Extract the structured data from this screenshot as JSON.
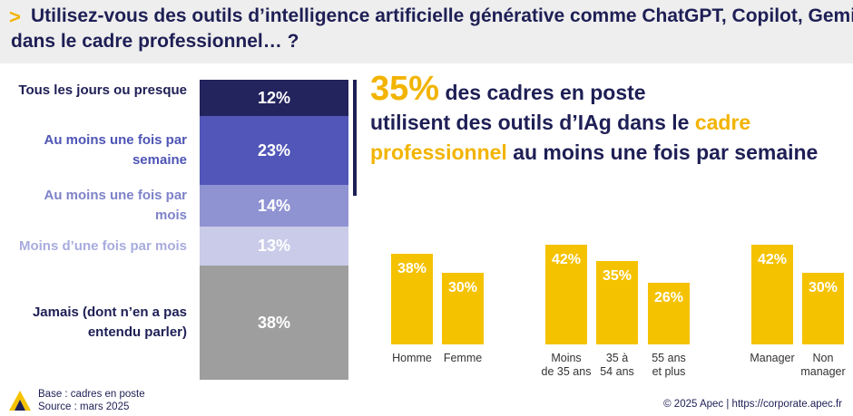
{
  "question": {
    "arrow": ">",
    "line1": "Utilisez-vous des outils d’intelligence artificielle générative comme ChatGPT, Copilot, Gemini",
    "line2": "dans le cadre professionnel… ?"
  },
  "headline": {
    "big_value": "35%",
    "part1": " des cadres en poste",
    "part2": "utilisent des outils d’IAg dans le ",
    "part3_highlight": "cadre",
    "part4_highlight": "professionnel",
    "part5": " au moins une fois par semaine"
  },
  "chart_data": [
    {
      "type": "bar",
      "orientation": "stacked-vertical",
      "categories": [
        "Tous les jours ou presque",
        "Au moins une fois par semaine",
        "Au moins une fois par mois",
        "Moins d’une fois par mois",
        "Jamais (dont n’en a pas entendu parler)"
      ],
      "values": [
        12,
        23,
        14,
        13,
        38
      ],
      "value_labels": [
        "12%",
        "23%",
        "14%",
        "13%",
        "38%"
      ],
      "colors": [
        "#23235e",
        "#5156b8",
        "#8f93d2",
        "#c9cbe8",
        "#9e9e9e"
      ],
      "label_colors": [
        "#1e1f55",
        "#4e55b5",
        "#7e83c9",
        "#a8acde",
        "#1e1f55"
      ],
      "category_lines": [
        [
          "Tous les jours ou presque"
        ],
        [
          "Au moins une fois par",
          "semaine"
        ],
        [
          "Au moins une fois par",
          "mois"
        ],
        [
          "Moins d’une fois par mois"
        ],
        [
          "Jamais (dont n’en a pas",
          "entendu parler)"
        ]
      ]
    },
    {
      "type": "bar",
      "categories": [
        "Homme",
        "Femme",
        "Moins de 35 ans",
        "35 à 54 ans",
        "55 ans et plus",
        "Manager",
        "Non manager"
      ],
      "values": [
        38,
        30,
        42,
        35,
        26,
        42,
        30
      ],
      "value_labels": [
        "38%",
        "30%",
        "42%",
        "35%",
        "26%",
        "42%",
        "30%"
      ],
      "label_lines": [
        [
          "Homme"
        ],
        [
          "Femme"
        ],
        [
          "Moins",
          "de 35 ans"
        ],
        [
          "35 à",
          "54 ans"
        ],
        [
          "55 ans",
          "et plus"
        ],
        [
          "Manager"
        ],
        [
          "Non",
          "manager"
        ]
      ],
      "color": "#f5c200"
    }
  ],
  "footer": {
    "base": "Base : cadres en poste",
    "source": "Source : mars 2025",
    "copyright": "© 2025 Apec | https://corporate.apec.fr"
  }
}
